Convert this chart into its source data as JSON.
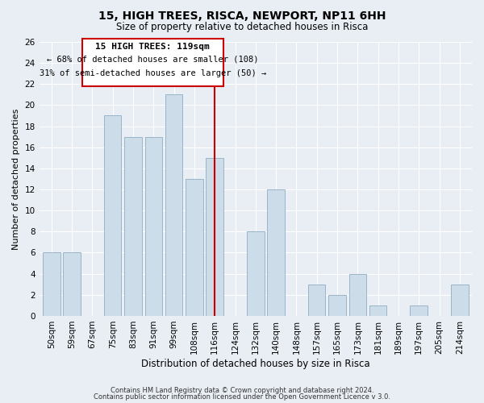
{
  "title": "15, HIGH TREES, RISCA, NEWPORT, NP11 6HH",
  "subtitle": "Size of property relative to detached houses in Risca",
  "xlabel": "Distribution of detached houses by size in Risca",
  "ylabel": "Number of detached properties",
  "footnote1": "Contains HM Land Registry data © Crown copyright and database right 2024.",
  "footnote2": "Contains public sector information licensed under the Open Government Licence v 3.0.",
  "bar_labels": [
    "50sqm",
    "59sqm",
    "67sqm",
    "75sqm",
    "83sqm",
    "91sqm",
    "99sqm",
    "108sqm",
    "116sqm",
    "124sqm",
    "132sqm",
    "140sqm",
    "148sqm",
    "157sqm",
    "165sqm",
    "173sqm",
    "181sqm",
    "189sqm",
    "197sqm",
    "205sqm",
    "214sqm"
  ],
  "bar_values": [
    6,
    6,
    0,
    19,
    17,
    17,
    21,
    13,
    15,
    0,
    8,
    12,
    0,
    3,
    2,
    4,
    1,
    0,
    1,
    0,
    3
  ],
  "bar_color": "#ccdce8",
  "bar_edge_color": "#9ab4c8",
  "highlight_bar_index": 8,
  "highlight_line_color": "#cc0000",
  "ylim": [
    0,
    26
  ],
  "yticks": [
    0,
    2,
    4,
    6,
    8,
    10,
    12,
    14,
    16,
    18,
    20,
    22,
    24,
    26
  ],
  "annotation_title": "15 HIGH TREES: 119sqm",
  "annotation_line1": "← 68% of detached houses are smaller (108)",
  "annotation_line2": "31% of semi-detached houses are larger (50) →",
  "annotation_box_color": "#ffffff",
  "annotation_box_edge": "#cc0000",
  "bg_color": "#e8eef4",
  "grid_color": "#ffffff",
  "title_fontsize": 10,
  "subtitle_fontsize": 8.5,
  "xlabel_fontsize": 8.5,
  "ylabel_fontsize": 8,
  "tick_fontsize": 7.5,
  "footnote_fontsize": 6
}
